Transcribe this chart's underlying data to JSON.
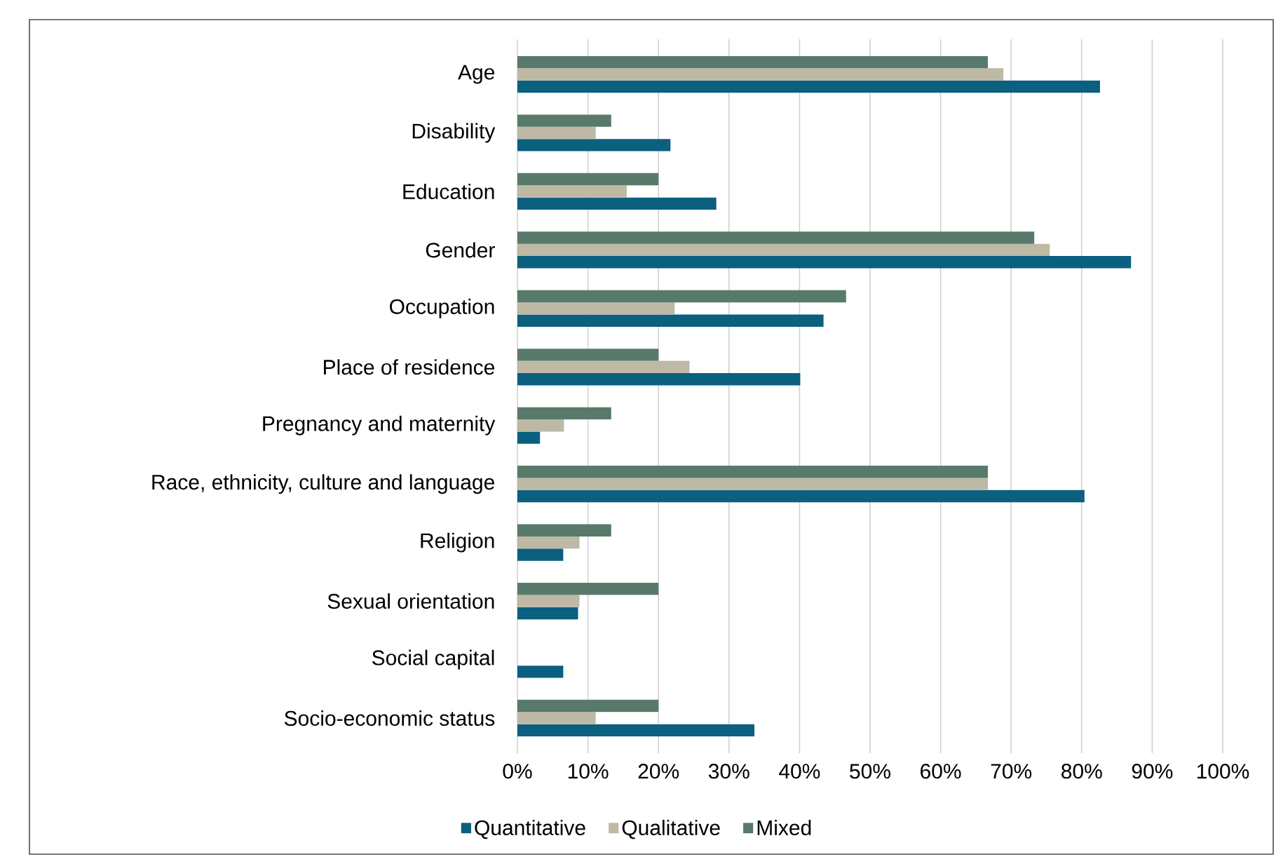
{
  "chart_data": {
    "type": "bar",
    "orientation": "horizontal",
    "categories": [
      "Age",
      "Disability",
      "Education",
      "Gender",
      "Occupation",
      "Place of residence",
      "Pregnancy and maternity",
      "Race, ethnicity, culture and language",
      "Religion",
      "Sexual orientation",
      "Social capital",
      "Socio-economic status"
    ],
    "series": [
      {
        "name": "Quantitative",
        "color": "#0b5f7f",
        "values": [
          82.6,
          21.7,
          28.2,
          87.0,
          43.4,
          40.1,
          3.2,
          80.4,
          6.5,
          8.6,
          6.5,
          33.6
        ]
      },
      {
        "name": "Qualitative",
        "color": "#bdb9a5",
        "values": [
          68.9,
          11.1,
          15.5,
          75.5,
          22.3,
          24.4,
          6.6,
          66.7,
          8.8,
          8.8,
          0,
          11.1
        ]
      },
      {
        "name": "Mixed",
        "color": "#587a6b",
        "values": [
          66.7,
          13.3,
          20.0,
          73.3,
          46.6,
          20.0,
          13.3,
          66.7,
          13.3,
          20.0,
          0,
          20.0
        ]
      }
    ],
    "xlim": [
      0,
      100
    ],
    "xticks": [
      {
        "value": 0,
        "label": "0%"
      },
      {
        "value": 10,
        "label": "10%"
      },
      {
        "value": 20,
        "label": "20%"
      },
      {
        "value": 30,
        "label": "30%"
      },
      {
        "value": 40,
        "label": "40%"
      },
      {
        "value": 50,
        "label": "50%"
      },
      {
        "value": 60,
        "label": "60%"
      },
      {
        "value": 70,
        "label": "70%"
      },
      {
        "value": 80,
        "label": "80%"
      },
      {
        "value": 90,
        "label": "90%"
      },
      {
        "value": 100,
        "label": "100%"
      }
    ],
    "grid": "x",
    "legend": "bottom"
  }
}
